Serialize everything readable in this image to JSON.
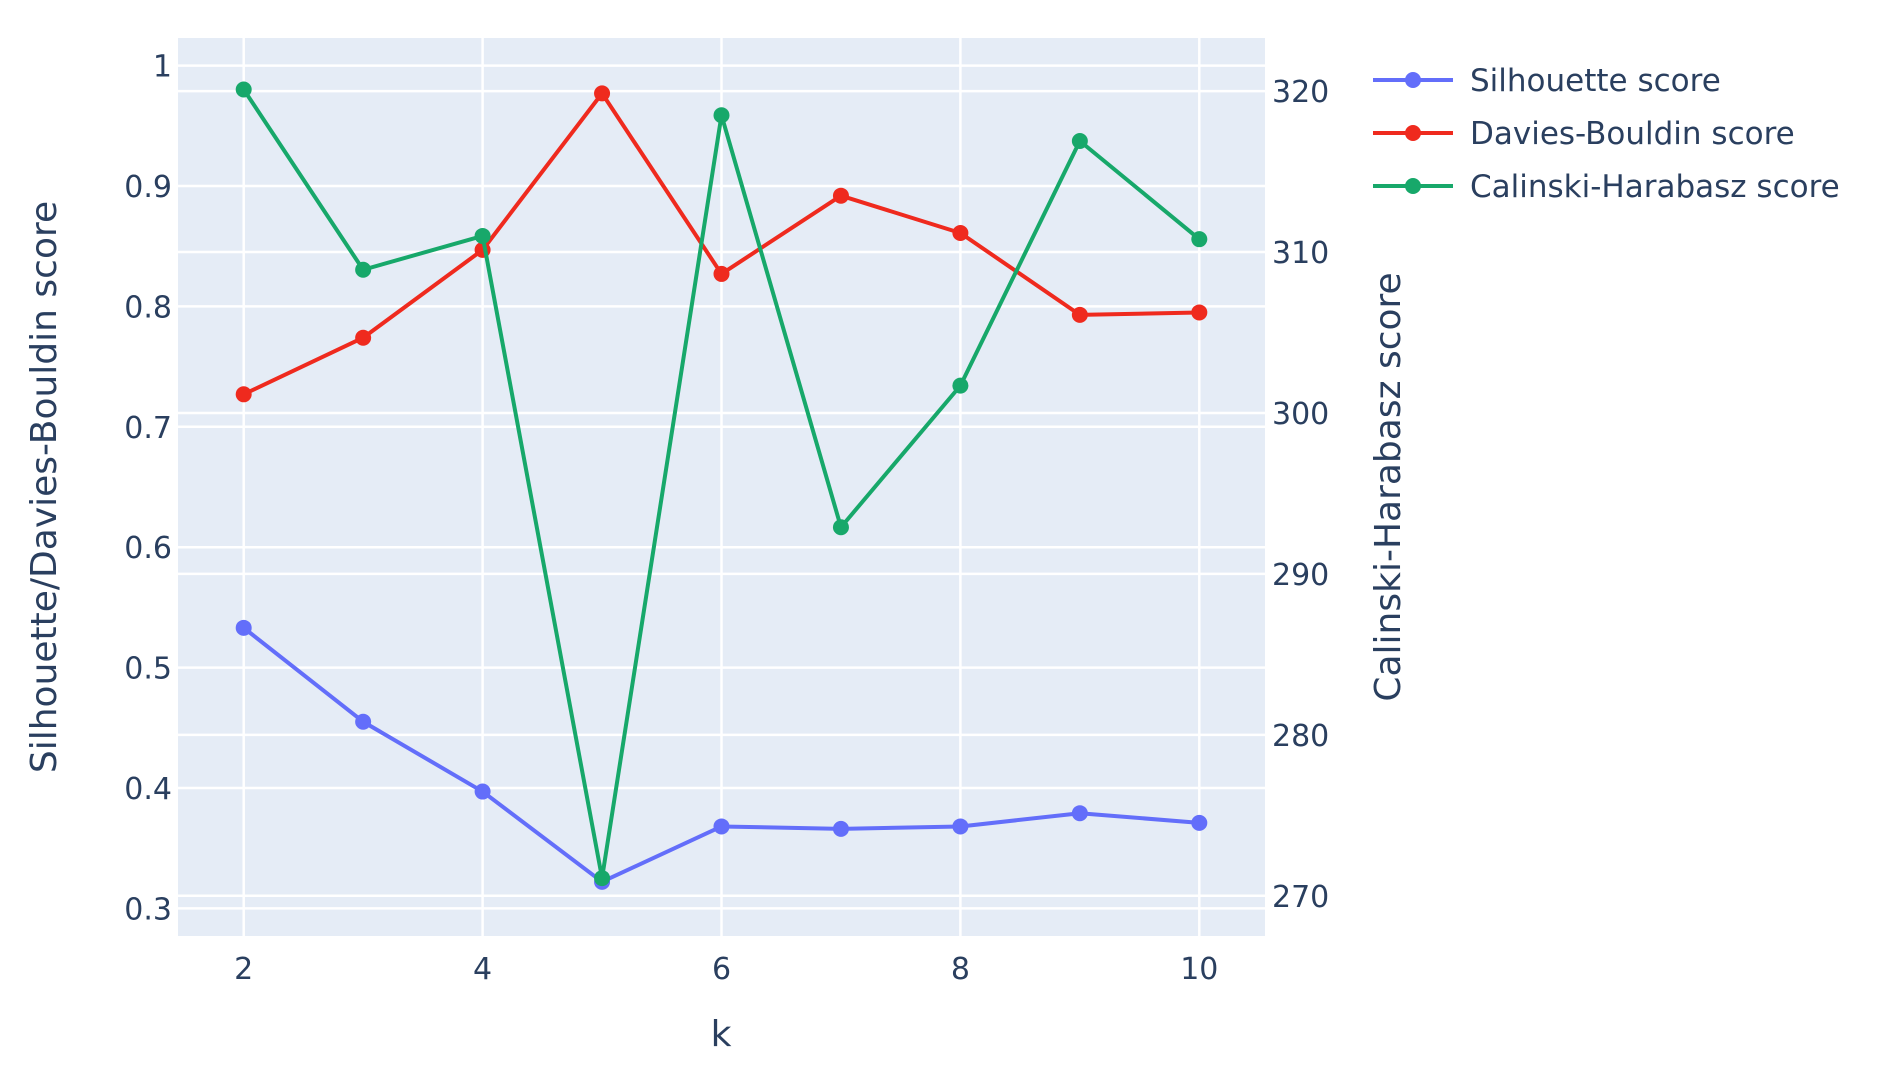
{
  "chart_data": {
    "type": "line",
    "title": "",
    "xlabel": "k",
    "ylabel_left": "Silhouette/Davies-Bouldin score",
    "ylabel_right": "Calinski-Harabasz score",
    "x": [
      2,
      3,
      4,
      5,
      6,
      7,
      8,
      9,
      10
    ],
    "xlim": [
      1.45,
      10.55
    ],
    "ylim_left": [
      0.277,
      1.023
    ],
    "ylim_right": [
      267.5,
      323.3
    ],
    "x_ticks": [
      2,
      4,
      6,
      8,
      10
    ],
    "y_left_ticks": [
      0.3,
      0.4,
      0.5,
      0.6,
      0.7,
      0.8,
      0.9,
      1
    ],
    "y_left_tick_labels": [
      "0.3",
      "0.4",
      "0.5",
      "0.6",
      "0.7",
      "0.8",
      "0.9",
      "1"
    ],
    "y_right_ticks": [
      270,
      280,
      290,
      300,
      310,
      320
    ],
    "grid": true,
    "legend_position": "top-right outside",
    "series": [
      {
        "name": "Silhouette score",
        "axis": "left",
        "color": "#636efa",
        "values": [
          0.533,
          0.455,
          0.397,
          0.322,
          0.368,
          0.366,
          0.368,
          0.379,
          0.371
        ]
      },
      {
        "name": "Davies-Bouldin score",
        "axis": "left",
        "color": "#ef2a1e",
        "values": [
          0.727,
          0.774,
          0.847,
          0.977,
          0.827,
          0.892,
          0.861,
          0.793,
          0.795
        ]
      },
      {
        "name": "Calinski-Harabasz score",
        "axis": "right",
        "color": "#17a86a",
        "values": [
          320.1,
          308.9,
          311.0,
          271.1,
          318.5,
          292.9,
          301.7,
          316.9,
          310.8
        ]
      }
    ]
  }
}
